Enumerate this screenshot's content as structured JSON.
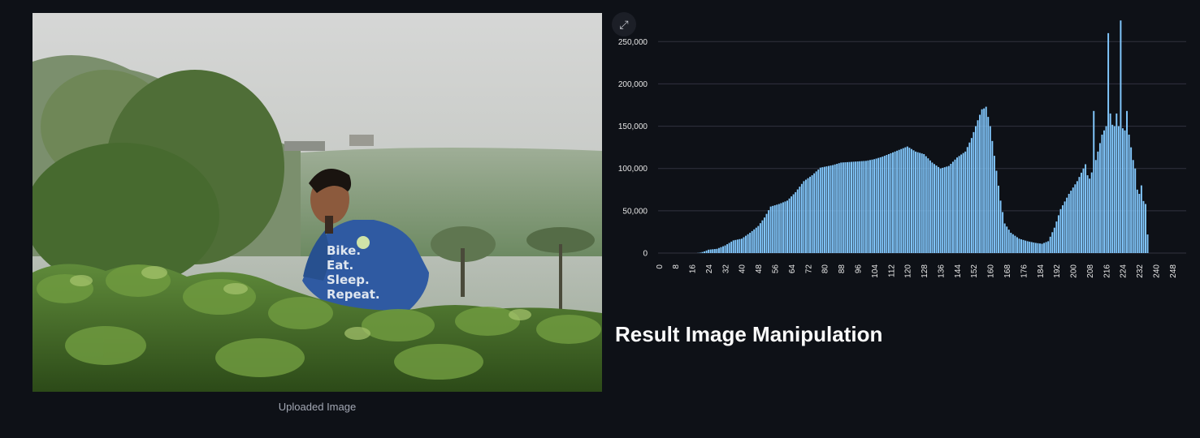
{
  "image": {
    "caption": "Uploaded Image",
    "shirt_text": [
      "Bike.",
      "Eat.",
      "Sleep.",
      "Repeat."
    ]
  },
  "expand_icon": "expand-icon",
  "result": {
    "title": "Result Image Manipulation"
  },
  "colors": {
    "background": "#0e1117",
    "bar": "#83c9ff",
    "grid": "#31333f"
  },
  "chart_data": {
    "type": "bar",
    "xlim": [
      0,
      255
    ],
    "ylim": [
      0,
      280000
    ],
    "x_ticks": [
      0,
      8,
      16,
      24,
      32,
      40,
      48,
      56,
      64,
      72,
      80,
      88,
      96,
      104,
      112,
      120,
      128,
      136,
      144,
      152,
      160,
      168,
      176,
      184,
      192,
      200,
      208,
      216,
      224,
      232,
      240,
      248
    ],
    "y_ticks": [
      0,
      50000,
      100000,
      150000,
      200000,
      250000
    ],
    "y_tick_labels": [
      "0",
      "50,000",
      "100,000",
      "150,000",
      "200,000",
      "250,000"
    ],
    "grid": "horizontal",
    "keypoints": [
      [
        0,
        0
      ],
      [
        18,
        0
      ],
      [
        20,
        500
      ],
      [
        22,
        2000
      ],
      [
        24,
        4000
      ],
      [
        28,
        5000
      ],
      [
        32,
        9000
      ],
      [
        36,
        15000
      ],
      [
        40,
        17000
      ],
      [
        44,
        24000
      ],
      [
        48,
        32000
      ],
      [
        51,
        42000
      ],
      [
        54,
        55000
      ],
      [
        58,
        58000
      ],
      [
        62,
        62000
      ],
      [
        66,
        72000
      ],
      [
        70,
        85000
      ],
      [
        74,
        92000
      ],
      [
        78,
        101000
      ],
      [
        84,
        104000
      ],
      [
        88,
        107000
      ],
      [
        94,
        108000
      ],
      [
        100,
        109000
      ],
      [
        104,
        111000
      ],
      [
        108,
        114000
      ],
      [
        112,
        118000
      ],
      [
        116,
        122000
      ],
      [
        120,
        126000
      ],
      [
        124,
        120000
      ],
      [
        128,
        117000
      ],
      [
        132,
        107000
      ],
      [
        136,
        100000
      ],
      [
        140,
        103000
      ],
      [
        144,
        113000
      ],
      [
        148,
        120000
      ],
      [
        151,
        136000
      ],
      [
        154,
        157000
      ],
      [
        156,
        170000
      ],
      [
        158,
        172000
      ],
      [
        160,
        150000
      ],
      [
        162,
        115000
      ],
      [
        165,
        62000
      ],
      [
        167,
        35000
      ],
      [
        170,
        24000
      ],
      [
        174,
        17000
      ],
      [
        178,
        14000
      ],
      [
        182,
        12000
      ],
      [
        185,
        11000
      ],
      [
        188,
        14000
      ],
      [
        191,
        30000
      ],
      [
        194,
        52000
      ],
      [
        198,
        70000
      ],
      [
        202,
        85000
      ],
      [
        205,
        100000
      ],
      [
        208,
        88000
      ],
      [
        211,
        110000
      ],
      [
        214,
        140000
      ],
      [
        217,
        155000
      ],
      [
        220,
        150000
      ],
      [
        223,
        150000
      ],
      [
        227,
        140000
      ],
      [
        229,
        110000
      ],
      [
        231,
        75000
      ],
      [
        233,
        65000
      ],
      [
        235,
        58000
      ],
      [
        236,
        22000
      ],
      [
        237,
        0
      ],
      [
        255,
        0
      ]
    ],
    "spikes": [
      [
        210,
        168000
      ],
      [
        206,
        105000
      ],
      [
        217,
        260000
      ],
      [
        218,
        165000
      ],
      [
        221,
        165000
      ],
      [
        223,
        275000
      ],
      [
        226,
        168000
      ],
      [
        230,
        100000
      ],
      [
        233,
        80000
      ],
      [
        158,
        173000
      ]
    ]
  }
}
